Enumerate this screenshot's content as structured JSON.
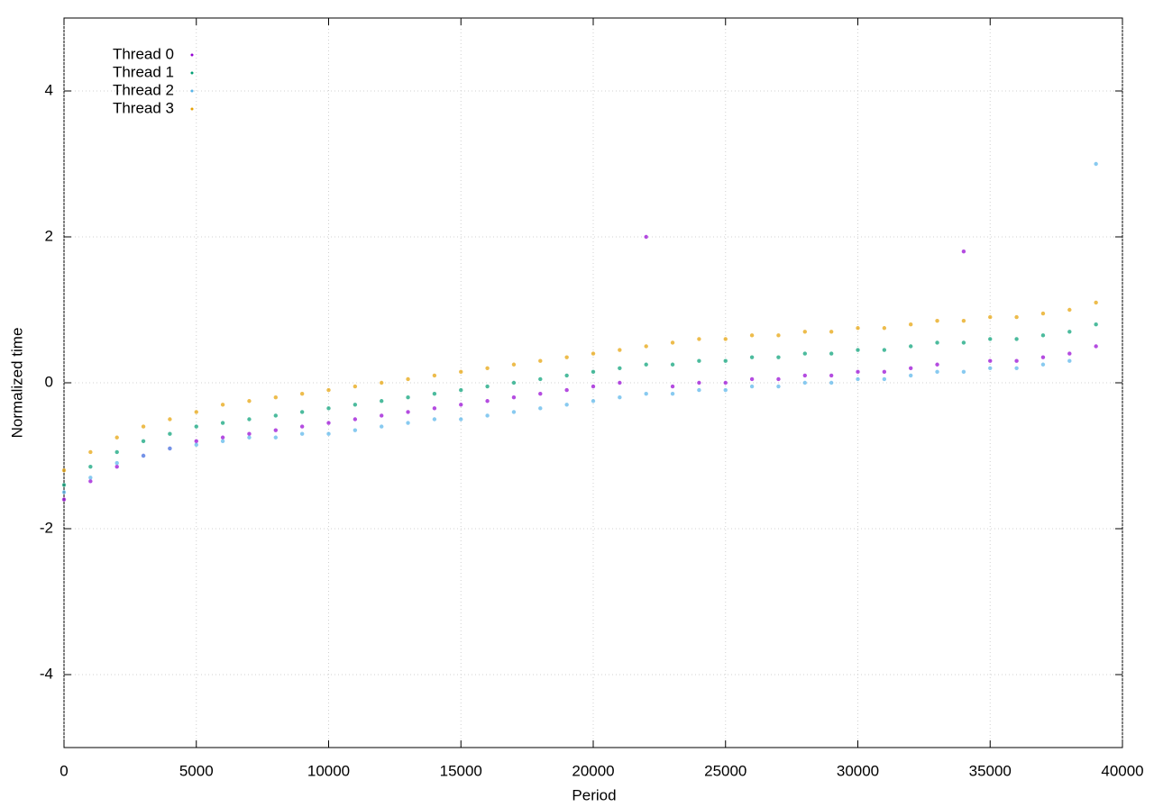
{
  "chart_data": {
    "type": "scatter",
    "x_label": "Period",
    "y_label": "Normalized time",
    "xlim": [
      0,
      40000
    ],
    "ylim": [
      -5,
      5
    ],
    "xticks": [
      0,
      5000,
      10000,
      15000,
      20000,
      25000,
      30000,
      35000,
      40000
    ],
    "yticks": [
      -4,
      -2,
      0,
      2,
      4
    ],
    "grid": true,
    "legend": "top-left",
    "x": [
      0,
      1000,
      2000,
      3000,
      4000,
      5000,
      6000,
      7000,
      8000,
      9000,
      10000,
      11000,
      12000,
      13000,
      14000,
      15000,
      16000,
      17000,
      18000,
      19000,
      20000,
      21000,
      22000,
      23000,
      24000,
      25000,
      26000,
      27000,
      28000,
      29000,
      30000,
      31000,
      32000,
      33000,
      34000,
      35000,
      36000,
      37000,
      38000,
      39000
    ],
    "series": [
      {
        "name": "Thread 0",
        "color": "#9400d3",
        "values": [
          -1.6,
          -1.35,
          -1.15,
          -1.0,
          -0.9,
          -0.8,
          -0.75,
          -0.7,
          -0.65,
          -0.6,
          -0.55,
          -0.5,
          -0.45,
          -0.4,
          -0.35,
          -0.3,
          -0.25,
          -0.2,
          -0.15,
          -0.1,
          -0.05,
          0,
          2.0,
          -0.05,
          0,
          0,
          0.05,
          0.05,
          0.1,
          0.1,
          0.15,
          0.15,
          0.2,
          0.25,
          1.8,
          0.3,
          0.3,
          0.35,
          0.4,
          0.5
        ]
      },
      {
        "name": "Thread 1",
        "color": "#009e73",
        "values": [
          -1.4,
          -1.15,
          -0.95,
          -0.8,
          -0.7,
          -0.6,
          -0.55,
          -0.5,
          -0.45,
          -0.4,
          -0.35,
          -0.3,
          -0.25,
          -0.2,
          -0.15,
          -0.1,
          -0.05,
          0,
          0.05,
          0.1,
          0.15,
          0.2,
          0.25,
          0.25,
          0.3,
          0.3,
          0.35,
          0.35,
          0.4,
          0.4,
          0.45,
          0.45,
          0.5,
          0.55,
          0.55,
          0.6,
          0.6,
          0.65,
          0.7,
          0.8
        ]
      },
      {
        "name": "Thread 2",
        "color": "#56b4e9",
        "values": [
          -1.5,
          -1.3,
          -1.1,
          -1.0,
          -0.9,
          -0.85,
          -0.8,
          -0.75,
          -0.75,
          -0.7,
          -0.7,
          -0.65,
          -0.6,
          -0.55,
          -0.5,
          -0.5,
          -0.45,
          -0.4,
          -0.35,
          -0.3,
          -0.25,
          -0.2,
          -0.15,
          -0.15,
          -0.1,
          -0.1,
          -0.05,
          -0.05,
          0,
          0,
          0.05,
          0.05,
          0.1,
          0.15,
          0.15,
          0.2,
          0.2,
          0.25,
          0.3,
          3.0
        ]
      },
      {
        "name": "Thread 3",
        "color": "#e69f00",
        "values": [
          -1.2,
          -0.95,
          -0.75,
          -0.6,
          -0.5,
          -0.4,
          -0.3,
          -0.25,
          -0.2,
          -0.15,
          -0.1,
          -0.05,
          0,
          0.05,
          0.1,
          0.15,
          0.2,
          0.25,
          0.3,
          0.35,
          0.4,
          0.45,
          0.5,
          0.55,
          0.6,
          0.6,
          0.65,
          0.65,
          0.7,
          0.7,
          0.75,
          0.75,
          0.8,
          0.85,
          0.85,
          0.9,
          0.9,
          0.95,
          1.0,
          1.1
        ]
      }
    ]
  }
}
